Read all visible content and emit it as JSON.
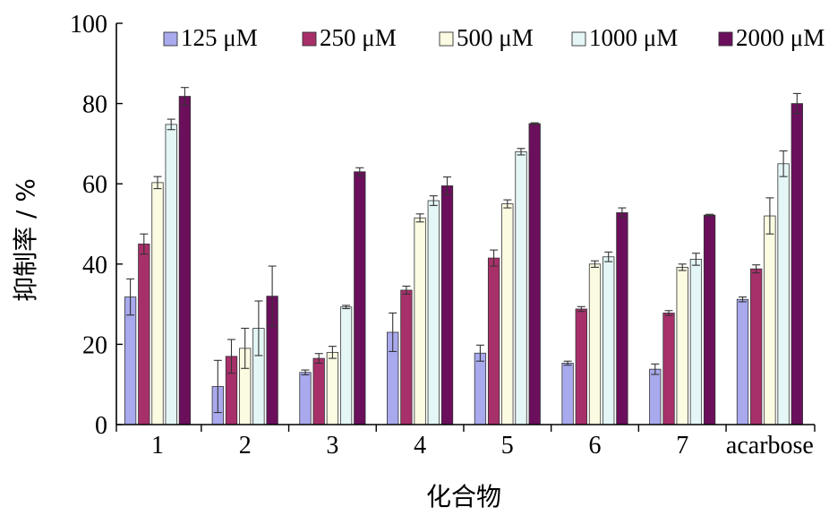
{
  "chart_data": {
    "type": "bar",
    "title": "",
    "xlabel": "化合物",
    "ylabel": "抑制率 / %",
    "ylim": [
      0,
      100
    ],
    "yticks": [
      0,
      20,
      40,
      60,
      80,
      100
    ],
    "grid": false,
    "legend_position": "top",
    "categories": [
      "1",
      "2",
      "3",
      "4",
      "5",
      "6",
      "7",
      "acarbose"
    ],
    "series": [
      {
        "name": "125 μM",
        "color": "#a9a9ee",
        "values": [
          31.8,
          9.5,
          13.0,
          23.0,
          17.8,
          15.3,
          13.8,
          31.2
        ],
        "errors": [
          4.5,
          6.5,
          0.6,
          4.8,
          2.0,
          0.5,
          1.3,
          0.6
        ]
      },
      {
        "name": "250 μM",
        "color": "#a8306a",
        "values": [
          45.0,
          17.0,
          16.5,
          33.5,
          41.5,
          28.8,
          27.8,
          38.8
        ],
        "errors": [
          2.5,
          4.2,
          1.2,
          1.0,
          2.0,
          0.6,
          0.6,
          1.0
        ]
      },
      {
        "name": "500 μM",
        "color": "#fbfbe2",
        "values": [
          60.3,
          19.0,
          18.0,
          51.5,
          55.0,
          40.0,
          39.2,
          52.0
        ],
        "errors": [
          1.5,
          5.0,
          1.5,
          1.0,
          1.0,
          0.8,
          0.8,
          4.5
        ]
      },
      {
        "name": "1000 μM",
        "color": "#e4f6f6",
        "values": [
          74.8,
          24.0,
          29.3,
          55.8,
          68.0,
          41.8,
          41.2,
          65.0
        ],
        "errors": [
          1.3,
          6.8,
          0.4,
          1.2,
          0.8,
          1.2,
          1.5,
          3.2
        ]
      },
      {
        "name": "2000 μM",
        "color": "#6b0f5c",
        "values": [
          81.8,
          32.0,
          63.0,
          59.5,
          75.0,
          52.8,
          52.2,
          80.0
        ],
        "errors": [
          2.2,
          7.5,
          1.0,
          2.2,
          0.2,
          1.2,
          0.2,
          2.5
        ]
      }
    ]
  }
}
